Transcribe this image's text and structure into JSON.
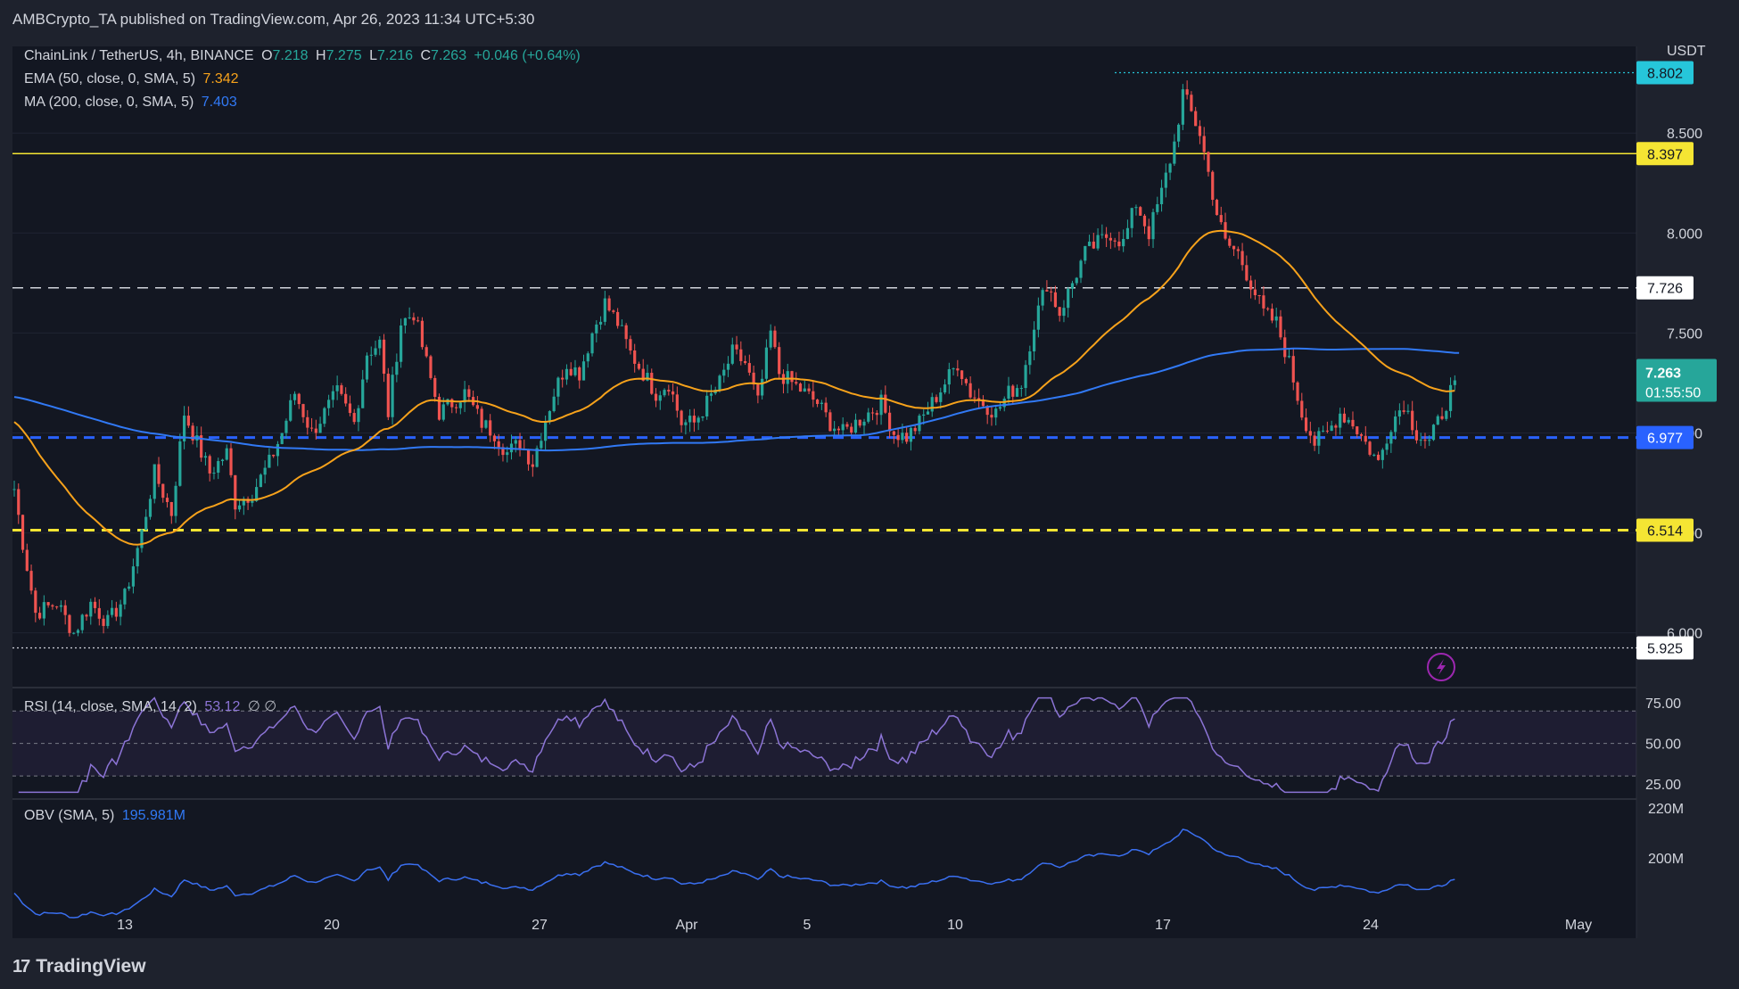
{
  "header": {
    "publisher": "AMBCrypto_TA published on TradingView.com, Apr 26, 2023 11:34 UTC+5:30"
  },
  "legend": {
    "symbol": "ChainLink / TetherUS, 4h, BINANCE",
    "o_label": "O",
    "o_value": "7.218",
    "h_label": "H",
    "h_value": "7.275",
    "l_label": "L",
    "l_value": "7.216",
    "c_label": "C",
    "c_value": "7.263",
    "change": "+0.046 (+0.64%)",
    "ema_label": "EMA (50, close, 0, SMA, 5)",
    "ema_value": "7.342",
    "ma_label": "MA (200, close, 0, SMA, 5)",
    "ma_value": "7.403",
    "rsi_label": "RSI (14, close, SMA, 14, 2)",
    "rsi_value": "53.12",
    "rsi_extra": "∅ ∅",
    "obv_label": "OBV (SMA, 5)",
    "obv_value": "195.981M"
  },
  "currency": "USDT",
  "countdown": "01:55:50",
  "colors": {
    "background": "#131722",
    "up": "#26a69a",
    "down": "#ef5350",
    "ema": "#f7a21b",
    "ma": "#3179f5",
    "rsi": "#8c74d6",
    "obv": "#3a6ff0",
    "yellow_level": "#f5e533",
    "blue_level": "#2962ff"
  },
  "branding": {
    "name": "TradingView",
    "mark": "17"
  },
  "chart_data": [
    {
      "type": "candlestick",
      "title": "ChainLink / TetherUS, 4h, BINANCE",
      "ylim": [
        5.78,
        8.88
      ],
      "y_ticks": [
        6.0,
        6.5,
        7.0,
        7.5,
        8.0,
        8.5
      ],
      "x_ticks": [
        "13",
        "20",
        "27",
        "Apr",
        "5",
        "10",
        "17",
        "24",
        "May"
      ],
      "anchors": [
        {
          "i": 0,
          "v": 6.72
        },
        {
          "i": 2,
          "v": 6.45
        },
        {
          "i": 5,
          "v": 6.1
        },
        {
          "i": 10,
          "v": 6.15
        },
        {
          "i": 14,
          "v": 6.0
        },
        {
          "i": 18,
          "v": 6.15
        },
        {
          "i": 22,
          "v": 6.05
        },
        {
          "i": 26,
          "v": 6.18
        },
        {
          "i": 30,
          "v": 6.5
        },
        {
          "i": 33,
          "v": 6.8
        },
        {
          "i": 37,
          "v": 6.6
        },
        {
          "i": 40,
          "v": 7.1
        },
        {
          "i": 43,
          "v": 6.95
        },
        {
          "i": 46,
          "v": 6.8
        },
        {
          "i": 50,
          "v": 6.9
        },
        {
          "i": 52,
          "v": 6.65
        },
        {
          "i": 56,
          "v": 6.7
        },
        {
          "i": 60,
          "v": 6.85
        },
        {
          "i": 63,
          "v": 7.0
        },
        {
          "i": 66,
          "v": 7.2
        },
        {
          "i": 70,
          "v": 7.0
        },
        {
          "i": 73,
          "v": 7.1
        },
        {
          "i": 76,
          "v": 7.2
        },
        {
          "i": 80,
          "v": 7.05
        },
        {
          "i": 83,
          "v": 7.4
        },
        {
          "i": 86,
          "v": 7.45
        },
        {
          "i": 88,
          "v": 7.1
        },
        {
          "i": 91,
          "v": 7.55
        },
        {
          "i": 94,
          "v": 7.6
        },
        {
          "i": 97,
          "v": 7.35
        },
        {
          "i": 100,
          "v": 7.1
        },
        {
          "i": 103,
          "v": 7.15
        },
        {
          "i": 106,
          "v": 7.2
        },
        {
          "i": 110,
          "v": 7.05
        },
        {
          "i": 113,
          "v": 7.0
        },
        {
          "i": 116,
          "v": 6.9
        },
        {
          "i": 119,
          "v": 6.95
        },
        {
          "i": 122,
          "v": 6.85
        },
        {
          "i": 124,
          "v": 7.0
        },
        {
          "i": 127,
          "v": 7.2
        },
        {
          "i": 130,
          "v": 7.35
        },
        {
          "i": 133,
          "v": 7.3
        },
        {
          "i": 136,
          "v": 7.5
        },
        {
          "i": 139,
          "v": 7.65
        },
        {
          "i": 142,
          "v": 7.55
        },
        {
          "i": 145,
          "v": 7.4
        },
        {
          "i": 148,
          "v": 7.3
        },
        {
          "i": 151,
          "v": 7.2
        },
        {
          "i": 154,
          "v": 7.25
        },
        {
          "i": 157,
          "v": 7.05
        },
        {
          "i": 160,
          "v": 7.05
        },
        {
          "i": 163,
          "v": 7.15
        },
        {
          "i": 166,
          "v": 7.25
        },
        {
          "i": 169,
          "v": 7.4
        },
        {
          "i": 172,
          "v": 7.35
        },
        {
          "i": 175,
          "v": 7.15
        },
        {
          "i": 178,
          "v": 7.5
        },
        {
          "i": 180,
          "v": 7.3
        },
        {
          "i": 183,
          "v": 7.25
        },
        {
          "i": 186,
          "v": 7.2
        },
        {
          "i": 189,
          "v": 7.15
        },
        {
          "i": 192,
          "v": 7.05
        },
        {
          "i": 195,
          "v": 7.0
        },
        {
          "i": 198,
          "v": 7.05
        },
        {
          "i": 201,
          "v": 7.1
        },
        {
          "i": 204,
          "v": 7.15
        },
        {
          "i": 207,
          "v": 7.0
        },
        {
          "i": 210,
          "v": 6.98
        },
        {
          "i": 213,
          "v": 7.05
        },
        {
          "i": 216,
          "v": 7.15
        },
        {
          "i": 219,
          "v": 7.25
        },
        {
          "i": 222,
          "v": 7.35
        },
        {
          "i": 225,
          "v": 7.2
        },
        {
          "i": 228,
          "v": 7.15
        },
        {
          "i": 231,
          "v": 7.1
        },
        {
          "i": 234,
          "v": 7.2
        },
        {
          "i": 237,
          "v": 7.25
        },
        {
          "i": 240,
          "v": 7.55
        },
        {
          "i": 243,
          "v": 7.75
        },
        {
          "i": 246,
          "v": 7.6
        },
        {
          "i": 249,
          "v": 7.75
        },
        {
          "i": 252,
          "v": 7.9
        },
        {
          "i": 255,
          "v": 7.95
        },
        {
          "i": 258,
          "v": 8.0
        },
        {
          "i": 261,
          "v": 7.95
        },
        {
          "i": 264,
          "v": 8.15
        },
        {
          "i": 267,
          "v": 8.0
        },
        {
          "i": 270,
          "v": 8.2
        },
        {
          "i": 273,
          "v": 8.45
        },
        {
          "i": 275,
          "v": 8.7
        },
        {
          "i": 277,
          "v": 8.6
        },
        {
          "i": 279,
          "v": 8.5
        },
        {
          "i": 281,
          "v": 8.3
        },
        {
          "i": 283,
          "v": 8.1
        },
        {
          "i": 285,
          "v": 7.95
        },
        {
          "i": 288,
          "v": 7.9
        },
        {
          "i": 291,
          "v": 7.75
        },
        {
          "i": 294,
          "v": 7.6
        },
        {
          "i": 297,
          "v": 7.55
        },
        {
          "i": 300,
          "v": 7.35
        },
        {
          "i": 303,
          "v": 7.1
        },
        {
          "i": 306,
          "v": 6.95
        },
        {
          "i": 309,
          "v": 7.0
        },
        {
          "i": 312,
          "v": 7.1
        },
        {
          "i": 315,
          "v": 7.05
        },
        {
          "i": 318,
          "v": 6.95
        },
        {
          "i": 321,
          "v": 6.85
        },
        {
          "i": 324,
          "v": 7.05
        },
        {
          "i": 327,
          "v": 7.15
        },
        {
          "i": 330,
          "v": 7.0
        },
        {
          "i": 333,
          "v": 6.95
        },
        {
          "i": 336,
          "v": 7.1
        },
        {
          "i": 339,
          "v": 7.263
        }
      ],
      "price_lines": [
        {
          "value": 8.802,
          "label": "8.802",
          "style": "dotted",
          "color": "#26c6da",
          "tag_bg": "#26c6da",
          "tag_fg": "#131722"
        },
        {
          "value": 8.397,
          "label": "8.397",
          "style": "solid",
          "color": "#f5e533",
          "tag_bg": "#f5e533",
          "tag_fg": "#131722"
        },
        {
          "value": 7.726,
          "label": "7.726",
          "style": "dashed",
          "color": "#d1d4dc",
          "tag_bg": "#ffffff",
          "tag_fg": "#131722"
        },
        {
          "value": 6.977,
          "label": "6.977",
          "style": "dashed",
          "color": "#2962ff",
          "tag_bg": "#2962ff",
          "tag_fg": "#ffffff"
        },
        {
          "value": 6.514,
          "label": "6.514",
          "style": "dashed",
          "color": "#f5e533",
          "tag_bg": "#f5e533",
          "tag_fg": "#131722"
        },
        {
          "value": 5.925,
          "label": "5.925",
          "style": "dotted",
          "color": "#d1d4dc",
          "tag_bg": "#ffffff",
          "tag_fg": "#131722"
        }
      ],
      "current_price": "7.263"
    },
    {
      "type": "line",
      "title": "RSI (14, close, SMA, 14, 2)",
      "ylim": [
        18,
        80
      ],
      "y_ticks": [
        75.0,
        50.0,
        25.0
      ],
      "bands": [
        70,
        50,
        30
      ],
      "value": 53.12
    },
    {
      "type": "line",
      "title": "OBV (SMA, 5)",
      "y_ticks": [
        "220M",
        "200M"
      ],
      "value": "195.981M"
    }
  ],
  "axis_labels": {
    "price": [
      "6.000",
      "6.500",
      "7.000",
      "7.500",
      "8.000",
      "8.500"
    ],
    "rsi": [
      "75.00",
      "50.00",
      "25.00"
    ],
    "obv": [
      "220M",
      "200M"
    ],
    "time": [
      "13",
      "20",
      "27",
      "Apr",
      "5",
      "10",
      "17",
      "24",
      "May"
    ]
  }
}
